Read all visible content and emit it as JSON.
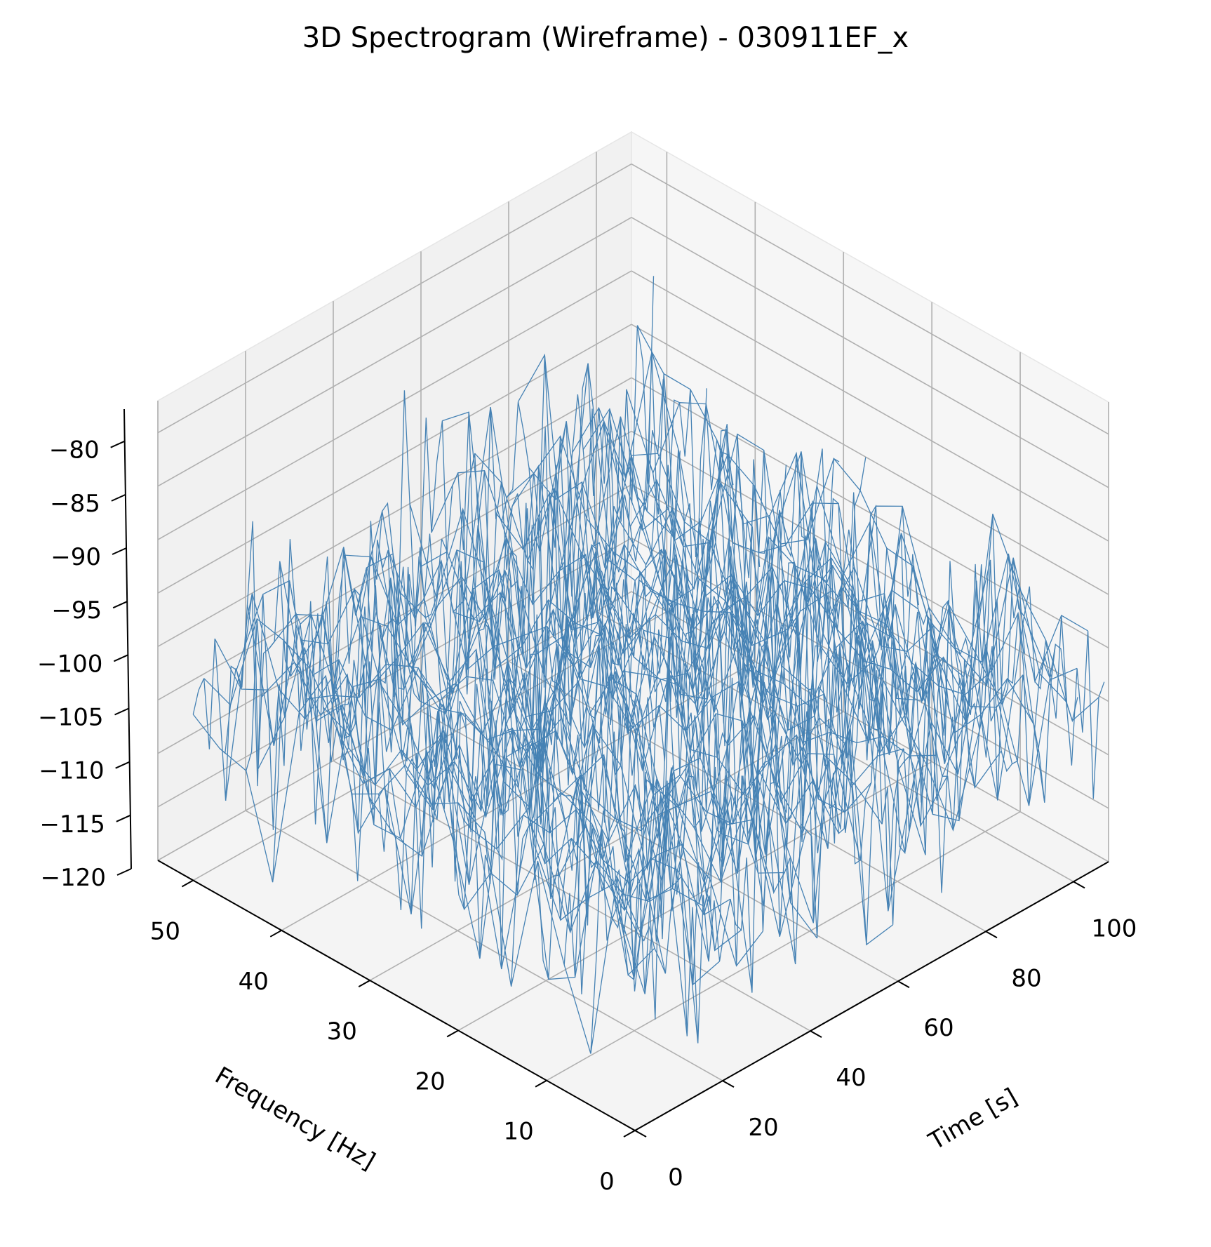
{
  "chart_data": {
    "type": "surface-wireframe-3d",
    "title": "3D Spectrogram (Wireframe) - 030911EF_x",
    "xlabel": "Time [s]",
    "ylabel": "Frequency [Hz]",
    "zlabel": "",
    "xlim": [
      0,
      108
    ],
    "ylim": [
      0,
      54
    ],
    "zlim": [
      -120,
      -77
    ],
    "x_ticks": [
      0,
      20,
      40,
      60,
      80,
      100
    ],
    "y_ticks": [
      0,
      10,
      20,
      30,
      40,
      50
    ],
    "z_ticks": [
      -120,
      -115,
      -110,
      -105,
      -100,
      -95,
      -90,
      -85,
      -80
    ],
    "grid": true,
    "surface": {
      "color": "#4682b4",
      "time_range": [
        2,
        107
      ],
      "freq_range": [
        0,
        51
      ],
      "time_samples": 86,
      "freq_samples": 18,
      "mean_power_db": -103,
      "min_power_db": -121,
      "max_power_db": -80,
      "noise": "random"
    }
  }
}
